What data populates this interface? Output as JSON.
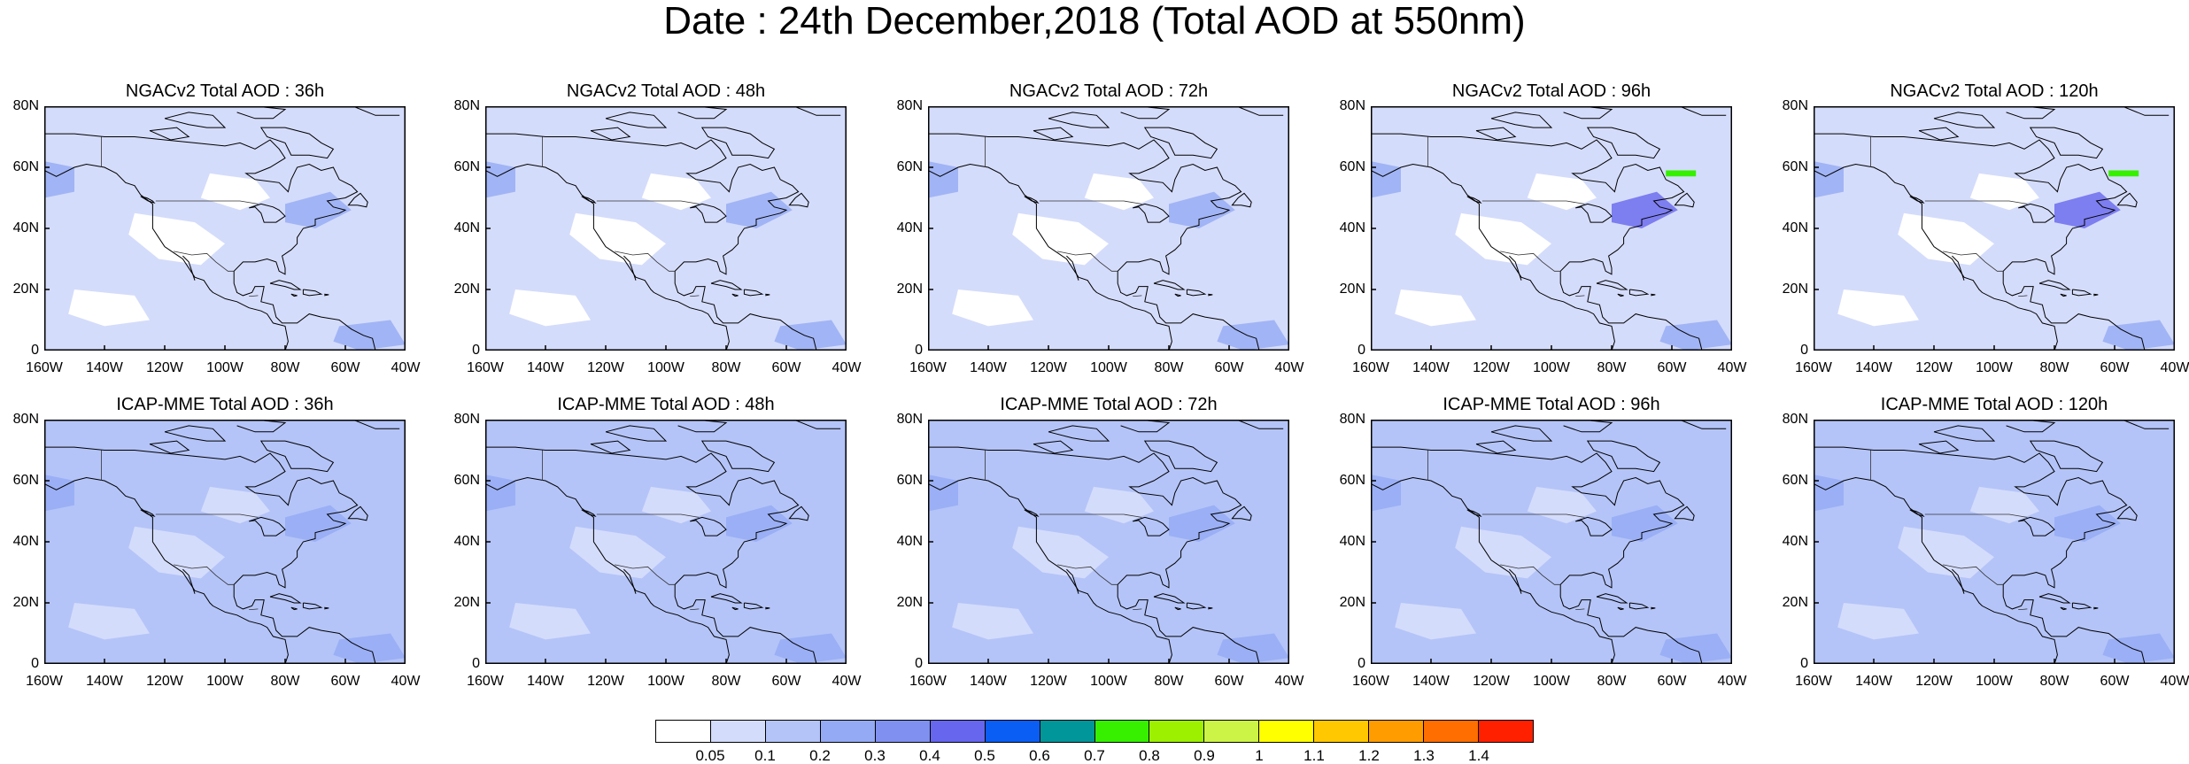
{
  "title": "Date : 24th December,2018 (Total AOD at 550nm)",
  "axes": {
    "lat_ticks": [
      "80N",
      "60N",
      "40N",
      "20N",
      "0"
    ],
    "lon_ticks": [
      "160W",
      "140W",
      "120W",
      "100W",
      "80W",
      "60W",
      "40W"
    ],
    "lat_range": [
      0,
      80
    ],
    "lon_range": [
      -160,
      -40
    ]
  },
  "panels": [
    {
      "title": "NGACv2 Total AOD : 36h",
      "model": "NGACv2",
      "lead": "36h"
    },
    {
      "title": "NGACv2 Total AOD : 48h",
      "model": "NGACv2",
      "lead": "48h"
    },
    {
      "title": "NGACv2 Total AOD : 72h",
      "model": "NGACv2",
      "lead": "72h"
    },
    {
      "title": "NGACv2 Total AOD : 96h",
      "model": "NGACv2",
      "lead": "96h"
    },
    {
      "title": "NGACv2 Total AOD : 120h",
      "model": "NGACv2",
      "lead": "120h"
    },
    {
      "title": "ICAP-MME Total AOD : 36h",
      "model": "ICAP-MME",
      "lead": "36h"
    },
    {
      "title": "ICAP-MME Total AOD : 48h",
      "model": "ICAP-MME",
      "lead": "48h"
    },
    {
      "title": "ICAP-MME Total AOD : 72h",
      "model": "ICAP-MME",
      "lead": "72h"
    },
    {
      "title": "ICAP-MME Total AOD : 96h",
      "model": "ICAP-MME",
      "lead": "96h"
    },
    {
      "title": "ICAP-MME Total AOD : 120h",
      "model": "ICAP-MME",
      "lead": "120h"
    }
  ],
  "colorbar": {
    "levels": [
      "0.05",
      "0.1",
      "0.2",
      "0.3",
      "0.4",
      "0.5",
      "0.6",
      "0.7",
      "0.8",
      "0.9",
      "1",
      "1.1",
      "1.2",
      "1.3",
      "1.4"
    ],
    "colors": [
      "#ffffff",
      "#d4dcfb",
      "#b4c4f8",
      "#94aaf4",
      "#8090f0",
      "#6666ee",
      "#0a5ef4",
      "#00969a",
      "#36f000",
      "#9cf000",
      "#ccf446",
      "#ffff00",
      "#ffc800",
      "#ff9c00",
      "#ff6e00",
      "#ff2000"
    ]
  }
}
